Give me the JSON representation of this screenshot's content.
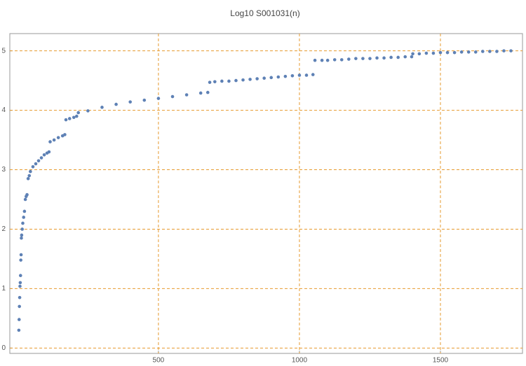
{
  "chart_data": {
    "type": "scatter",
    "title": "Log10 S001031(n)",
    "color": "#5e81b5",
    "grid": true,
    "grid_color": "#e69a2e",
    "xlim": [
      -27,
      1791
    ],
    "ylim": [
      -0.09,
      5.29
    ],
    "xticks": [
      500,
      1000,
      1500
    ],
    "yticks": [
      0,
      1,
      2,
      3,
      4,
      5
    ],
    "x": [
      5,
      6,
      7,
      8,
      9,
      10,
      11,
      12,
      13,
      14,
      15,
      17,
      19,
      22,
      25,
      28,
      31,
      34,
      38,
      42,
      46,
      55,
      65,
      75,
      85,
      95,
      105,
      112,
      116,
      130,
      145,
      160,
      168,
      172,
      185,
      200,
      210,
      216,
      250,
      300,
      350,
      400,
      450,
      500,
      550,
      600,
      650,
      675,
      682,
      700,
      725,
      750,
      775,
      800,
      825,
      850,
      875,
      900,
      925,
      950,
      975,
      1000,
      1025,
      1048,
      1055,
      1080,
      1100,
      1125,
      1150,
      1175,
      1200,
      1225,
      1250,
      1275,
      1300,
      1325,
      1350,
      1375,
      1398,
      1402,
      1425,
      1450,
      1475,
      1500,
      1525,
      1550,
      1575,
      1600,
      1625,
      1650,
      1675,
      1700,
      1725,
      1750
    ],
    "values": [
      0.3,
      0.48,
      0.7,
      0.85,
      1.04,
      1.1,
      1.22,
      1.48,
      1.57,
      1.85,
      1.9,
      2.0,
      2.1,
      2.2,
      2.3,
      2.5,
      2.55,
      2.58,
      2.85,
      2.9,
      2.97,
      3.05,
      3.1,
      3.15,
      3.2,
      3.25,
      3.28,
      3.3,
      3.47,
      3.5,
      3.54,
      3.57,
      3.59,
      3.84,
      3.86,
      3.88,
      3.9,
      3.96,
      3.99,
      4.05,
      4.1,
      4.14,
      4.17,
      4.2,
      4.23,
      4.26,
      4.29,
      4.3,
      4.47,
      4.48,
      4.49,
      4.49,
      4.5,
      4.51,
      4.52,
      4.53,
      4.54,
      4.55,
      4.56,
      4.57,
      4.58,
      4.59,
      4.59,
      4.6,
      4.84,
      4.84,
      4.84,
      4.85,
      4.85,
      4.86,
      4.87,
      4.87,
      4.87,
      4.88,
      4.88,
      4.89,
      4.89,
      4.9,
      4.9,
      4.95,
      4.95,
      4.96,
      4.96,
      4.97,
      4.97,
      4.97,
      4.98,
      4.98,
      4.98,
      4.99,
      4.99,
      4.99,
      5.0,
      5.0
    ]
  }
}
